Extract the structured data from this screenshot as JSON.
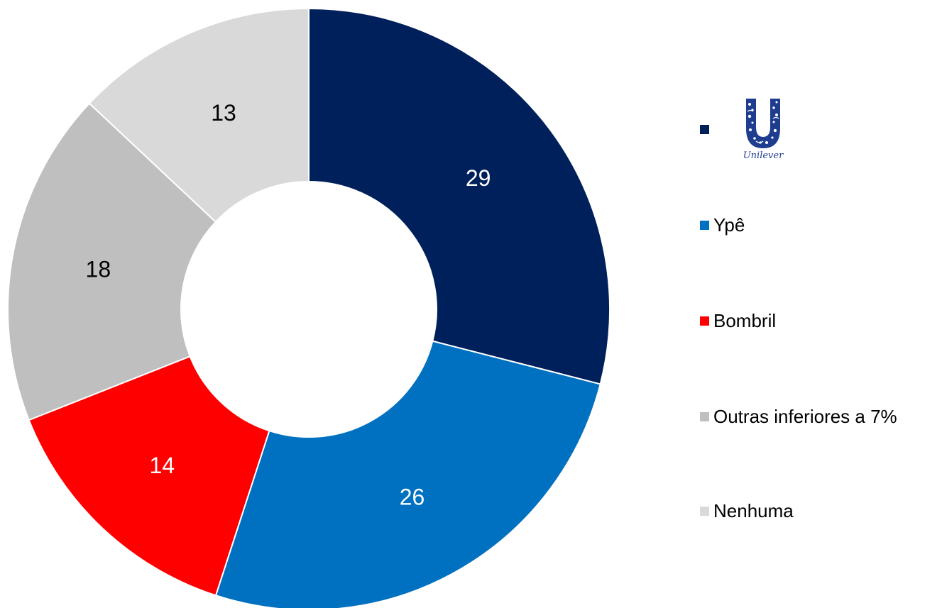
{
  "chart_data": {
    "type": "pie",
    "donut": true,
    "start_angle_deg": 0,
    "direction": "clockwise",
    "slices": [
      {
        "label": "",
        "brand_logo": "unilever-logo",
        "value": 29,
        "color": "#00205b",
        "label_color": "#ffffff"
      },
      {
        "label": "Ypê",
        "value": 26,
        "color": "#0070c0",
        "label_color": "#ffffff"
      },
      {
        "label": "Bombril",
        "value": 14,
        "color": "#ff0000",
        "label_color": "#ffffff"
      },
      {
        "label": "Outras inferiores a 7%",
        "value": 18,
        "color": "#bfbfbf",
        "label_color": "#000000"
      },
      {
        "label": "Nenhuma",
        "value": 13,
        "color": "#d9d9d9",
        "label_color": "#000000"
      }
    ],
    "legend": {
      "placement": "right",
      "entries": [
        "",
        "Ypê",
        "Bombril",
        "Outras inferiores a 7%",
        "Nenhuma"
      ]
    },
    "logo_text": "Unilever",
    "title": "",
    "xlabel": "",
    "ylabel": ""
  }
}
